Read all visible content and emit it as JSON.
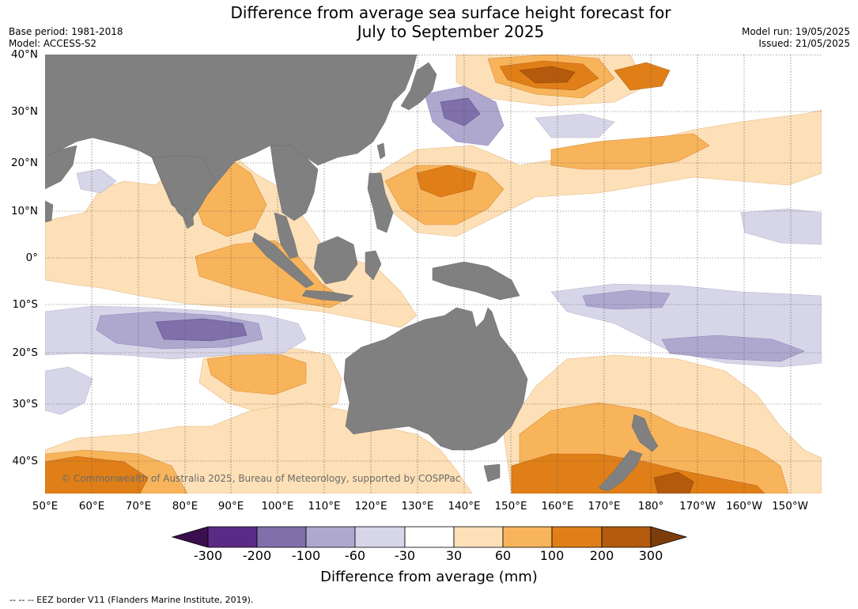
{
  "title": {
    "line1": "Difference from average sea surface height forecast for",
    "line2": "July to September 2025"
  },
  "meta_left": {
    "base_period": "Base period: 1981-2018",
    "model": "Model: ACCESS-S2"
  },
  "meta_right": {
    "model_run": "Model run: 19/05/2025",
    "issued": "Issued: 21/05/2025"
  },
  "latitude_labels": [
    "40°N",
    "30°N",
    "20°N",
    "10°N",
    "0°",
    "10°S",
    "20°S",
    "30°S",
    "40°S"
  ],
  "longitude_labels": [
    "50°E",
    "60°E",
    "70°E",
    "80°E",
    "90°E",
    "100°E",
    "110°E",
    "120°E",
    "130°E",
    "140°E",
    "150°E",
    "160°E",
    "170°E",
    "180°",
    "170°W",
    "160°W",
    "150°W"
  ],
  "copyright": "© Commonwealth of Australia 2025, Bureau of Meteorology, supported by COSPPac",
  "colorbar": {
    "label": "Difference from average (mm)",
    "ticks": [
      "-300",
      "-200",
      "-100",
      "-60",
      "-30",
      "30",
      "60",
      "100",
      "200",
      "300"
    ],
    "colors": {
      "below_-300": "#3b0f4f",
      "-300_-200": "#5a2a87",
      "-200_-100": "#7f6faa",
      "-100_-60": "#aea8cf",
      "-60_-30": "#d7d6e8",
      "-30_30": "#ffffff",
      "30_60": "#fde0b7",
      "60_100": "#f8b45b",
      "100_200": "#e07f18",
      "200_300": "#b35a0c",
      "above_300": "#7d3d0a"
    }
  },
  "land_color": "#808080",
  "footer": "-- -- -- EEZ border V11 (Flanders Marine Institute, 2019)."
}
